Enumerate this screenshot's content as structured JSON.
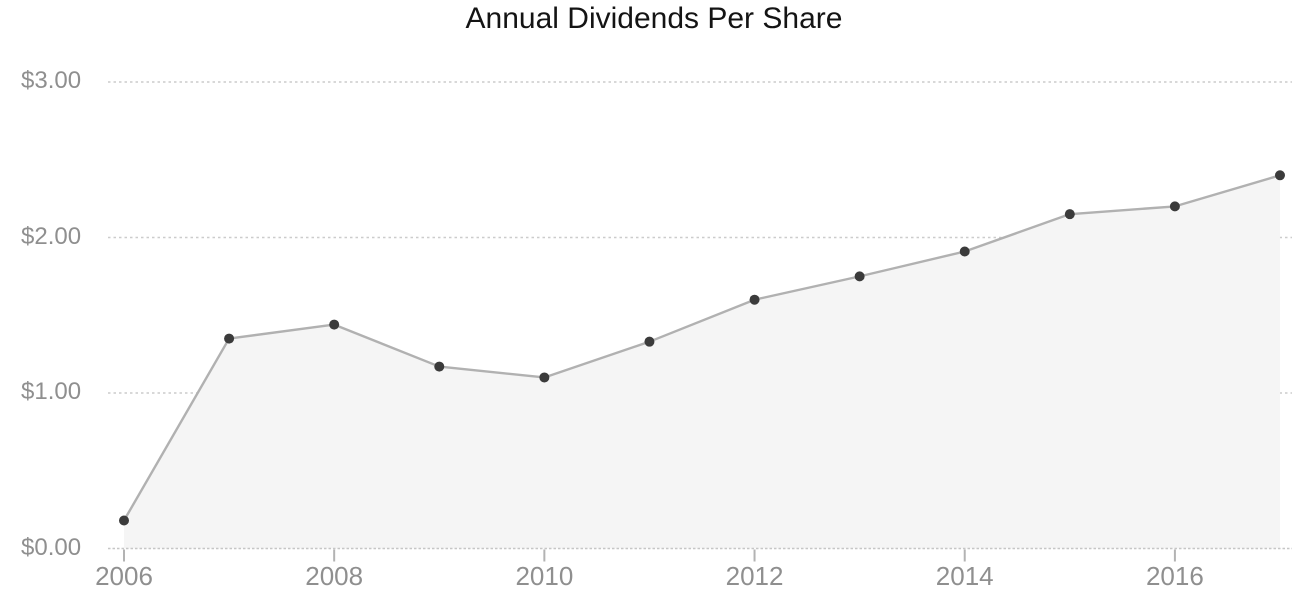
{
  "chart_data": {
    "type": "area",
    "title": "Annual Dividends Per Share",
    "x": [
      2006,
      2007,
      2008,
      2009,
      2010,
      2011,
      2012,
      2013,
      2014,
      2015,
      2016,
      2017
    ],
    "values": [
      0.18,
      1.35,
      1.44,
      1.17,
      1.1,
      1.33,
      1.6,
      1.75,
      1.91,
      2.15,
      2.2,
      2.4
    ],
    "series_name": "Annual Dividends Per Share ($)",
    "xlabel": "",
    "ylabel": "",
    "xlim": [
      2006,
      2017
    ],
    "ylim": [
      0,
      3
    ],
    "y_tick_values": [
      0,
      1,
      2,
      3
    ],
    "y_tick_labels": [
      "$0.00",
      "$1.00",
      "$2.00",
      "$3.00"
    ],
    "x_tick_values": [
      2006,
      2008,
      2010,
      2012,
      2014,
      2016
    ],
    "x_tick_labels": [
      "2006",
      "2008",
      "2010",
      "2012",
      "2014",
      "2016"
    ],
    "grid": "horizontal dotted lines, area fill drawn over gridlines",
    "legend": "none",
    "markers": "filled circles at every yearly point",
    "colors": {
      "title_text": "#141414",
      "axis_text": "#8f8f8f",
      "gridline": "#cccccc",
      "baseline": "#c6c6c6",
      "tick_mark": "#b3b3b3",
      "line": "#b1b1b1",
      "area_fill": "#f5f5f5",
      "point": "#3b3b3b",
      "background": "#ffffff"
    }
  }
}
